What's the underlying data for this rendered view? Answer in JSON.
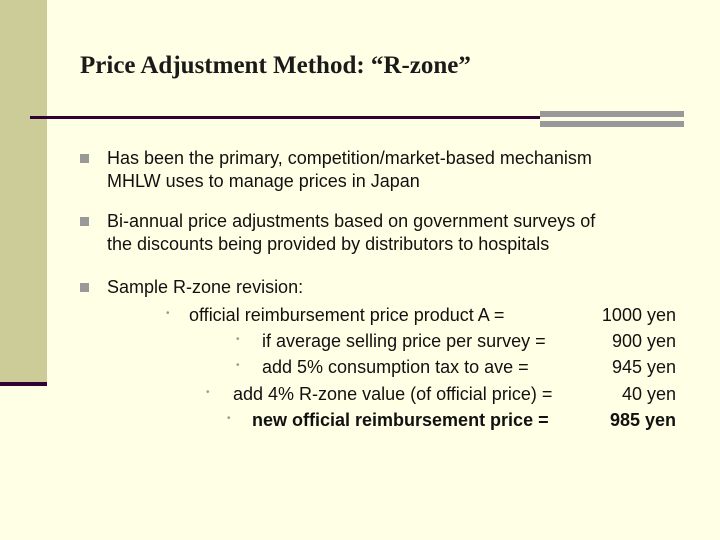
{
  "title": "Price Adjustment Method: “R-zone”",
  "bullets": [
    {
      "line1": "Has been the primary, competition/market-based mechanism",
      "line2": "MHLW uses to manage prices in Japan"
    },
    {
      "line1": "Bi-annual price adjustments based on government surveys of",
      "line2": "the discounts being provided by distributors to hospitals"
    },
    {
      "line1": "Sample R-zone revision:"
    }
  ],
  "subitems": [
    {
      "label": "official reimbursement price product A =",
      "value": "1000 yen"
    },
    {
      "label": "if average selling price per survey =",
      "value": "900 yen"
    },
    {
      "label": "add 5% consumption tax to ave =",
      "value": "945 yen"
    },
    {
      "label": "add 4% R-zone value (of official price) =",
      "value": "40 yen"
    },
    {
      "label": "new official reimbursement price =",
      "value": "985 yen"
    }
  ],
  "colors": {
    "background": "#FFFFE5",
    "accent_bar": "#CCCC99",
    "rule_dark": "#330033",
    "bullet_gray": "#999999"
  }
}
